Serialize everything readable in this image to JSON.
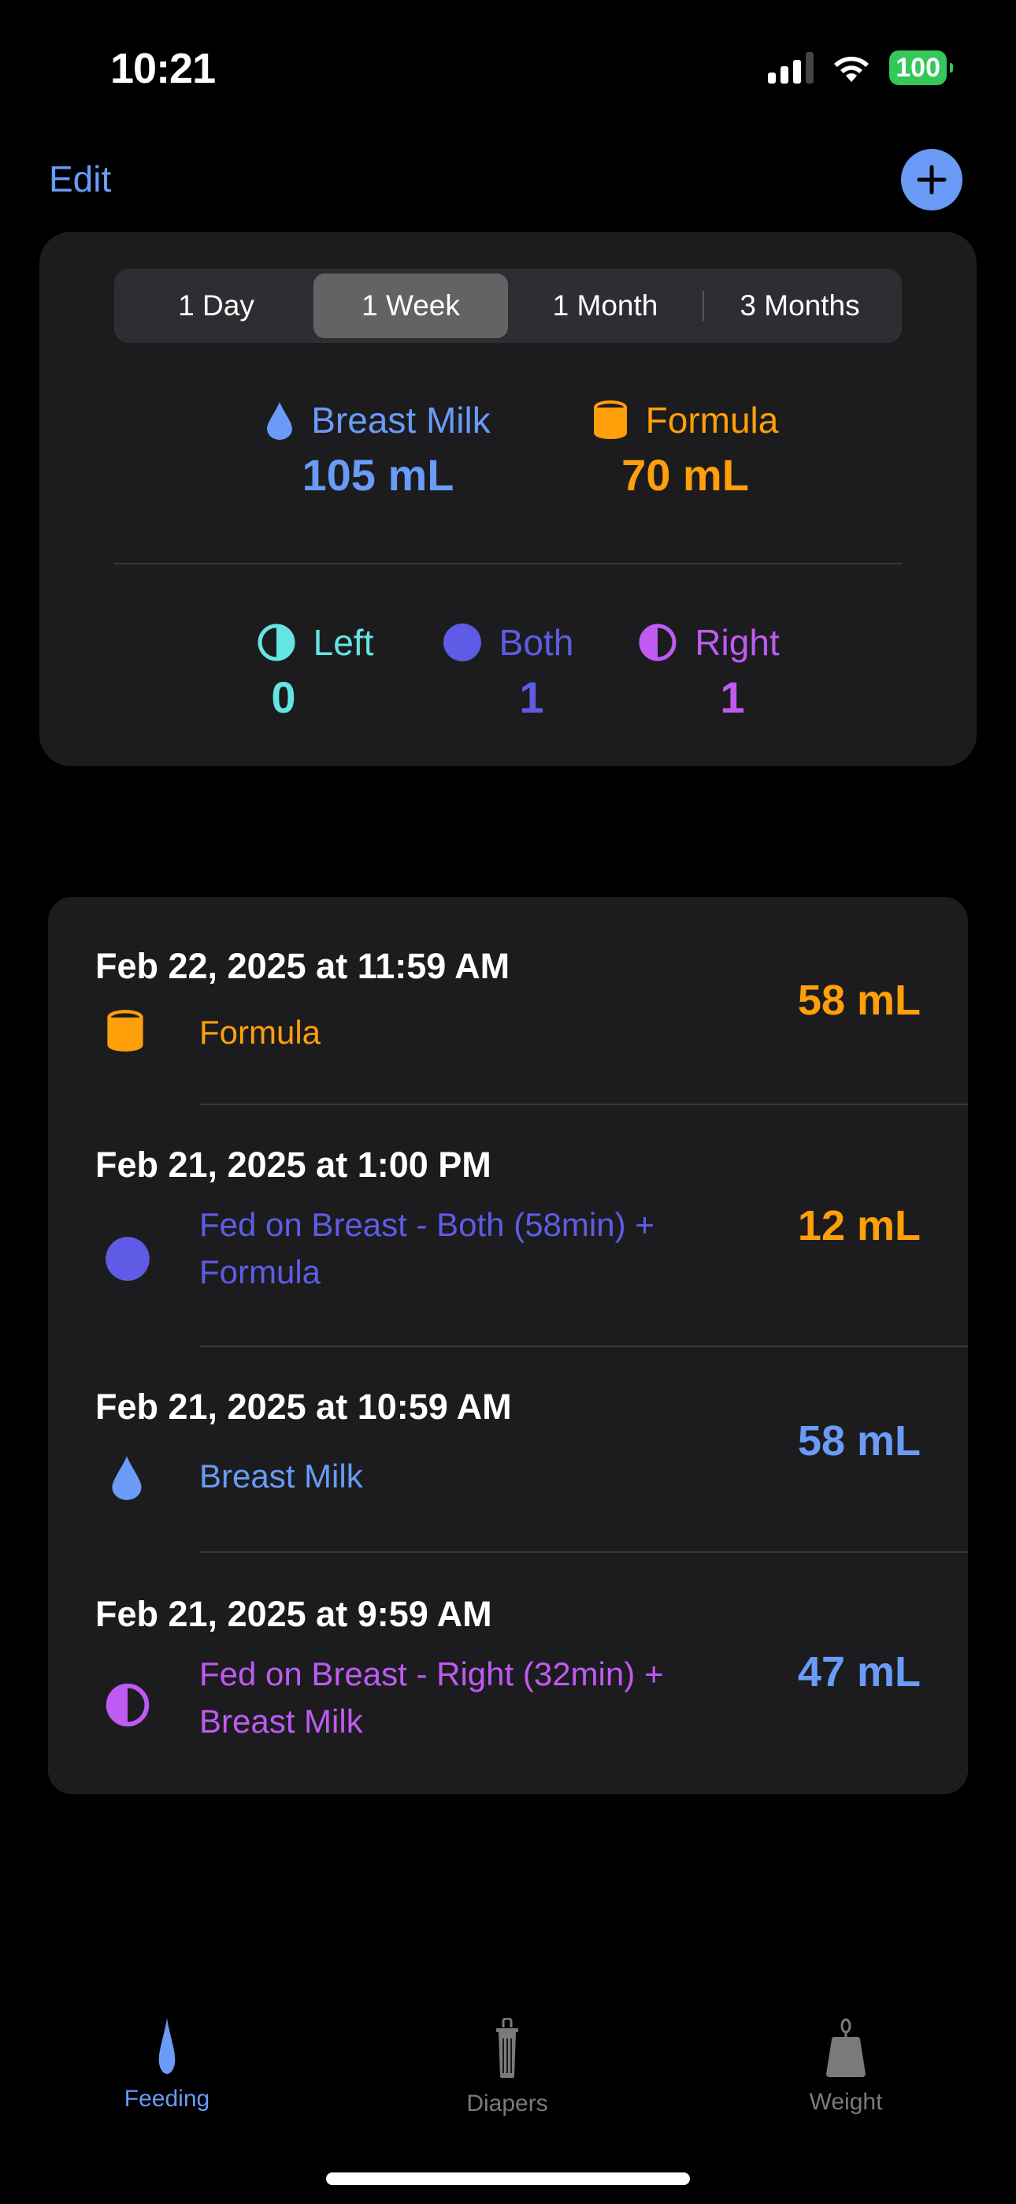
{
  "status_bar": {
    "time": "10:21",
    "battery": "100"
  },
  "nav": {
    "edit_label": "Edit",
    "add_icon": "plus-icon"
  },
  "colors": {
    "blue": "#699bf7",
    "orange": "#ff9f0a",
    "teal": "#63e6e2",
    "indigo": "#5e5ce6",
    "purple": "#bf5af2",
    "card": "#1c1c1e"
  },
  "range_selector": {
    "options": [
      "1 Day",
      "1 Week",
      "1 Month",
      "3 Months"
    ],
    "selected": "1 Week"
  },
  "summary": {
    "breast_milk": {
      "label": "Breast Milk",
      "value": "105 mL",
      "icon": "drop-icon"
    },
    "formula": {
      "label": "Formula",
      "value": "70 mL",
      "icon": "cylinder-icon"
    },
    "left": {
      "label": "Left",
      "value": "0"
    },
    "both": {
      "label": "Both",
      "value": "1"
    },
    "right": {
      "label": "Right",
      "value": "1"
    }
  },
  "entries": [
    {
      "date": "Feb 22, 2025 at 11:59 AM",
      "type": "formula",
      "description": "Formula",
      "amount": "58 mL"
    },
    {
      "date": "Feb 21, 2025 at 1:00 PM",
      "type": "both",
      "description": "Fed on Breast - Both (58min) + Formula",
      "amount": "12 mL"
    },
    {
      "date": "Feb 21, 2025 at 10:59 AM",
      "type": "breast-milk",
      "description": "Breast Milk",
      "amount": "58 mL"
    },
    {
      "date": "Feb 21, 2025 at 9:59 AM",
      "type": "right",
      "description": "Fed on Breast - Right (32min) + Breast Milk",
      "amount": "47 mL"
    }
  ],
  "tabs": [
    {
      "label": "Feeding",
      "icon": "drop-icon",
      "active": true
    },
    {
      "label": "Diapers",
      "icon": "trash-icon",
      "active": false
    },
    {
      "label": "Weight",
      "icon": "weight-icon",
      "active": false
    }
  ]
}
